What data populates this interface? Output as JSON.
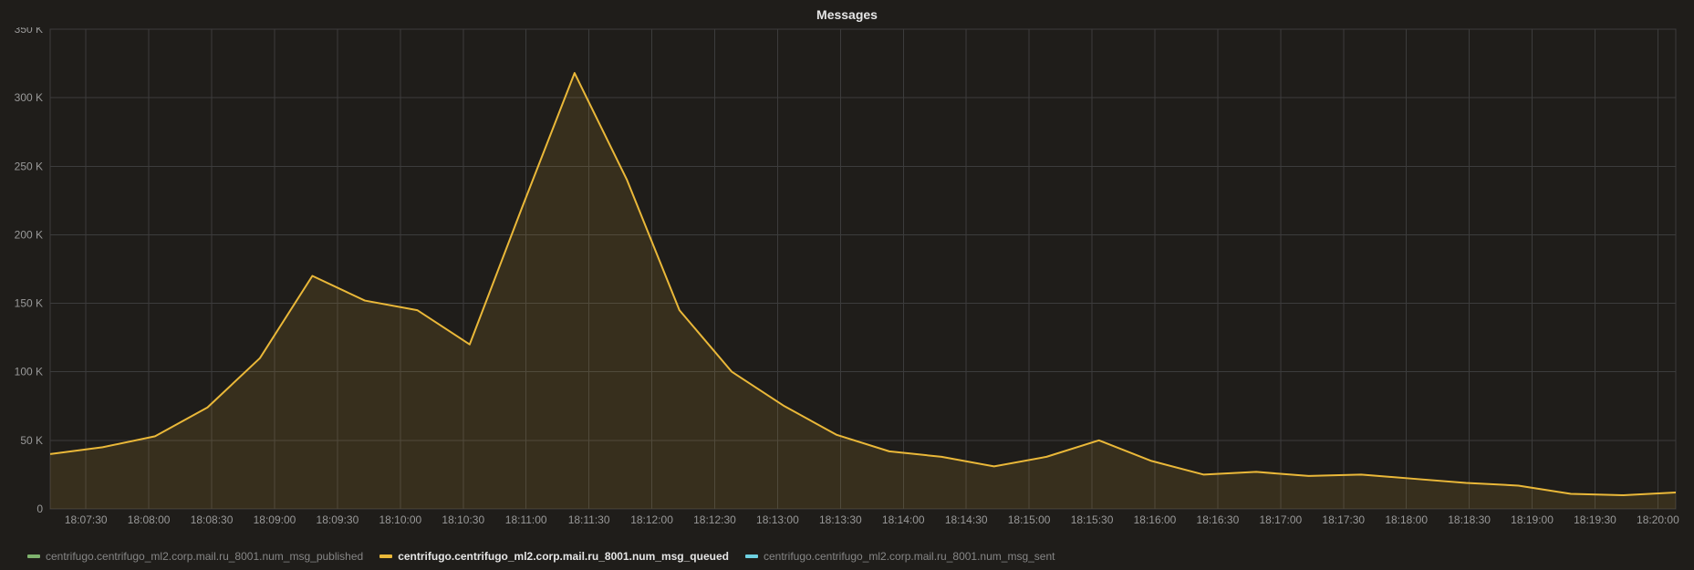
{
  "panel": {
    "title": "Messages",
    "background_color": "#1f1d1a",
    "title_color": "#e6e6e6",
    "title_fontsize": 14
  },
  "chart": {
    "type": "area",
    "grid_color": "#3c3c3c",
    "axis_label_color": "#999999",
    "axis_fontsize": 12,
    "y_axis": {
      "min": 0,
      "max": 350000,
      "tick_step": 50000,
      "tick_labels": [
        "0",
        "50 K",
        "100 K",
        "150 K",
        "200 K",
        "250 K",
        "300 K",
        "350 K"
      ]
    },
    "x_axis": {
      "tick_labels": [
        "18:07:30",
        "18:08:00",
        "18:08:30",
        "18:09:00",
        "18:09:30",
        "18:10:00",
        "18:10:30",
        "18:11:00",
        "18:11:30",
        "18:12:00",
        "18:12:30",
        "18:13:00",
        "18:13:30",
        "18:14:00",
        "18:14:30",
        "18:15:00",
        "18:15:30",
        "18:16:00",
        "18:16:30",
        "18:17:00",
        "18:17:30",
        "18:18:00",
        "18:18:30",
        "18:19:00",
        "18:19:30",
        "18:20:00"
      ]
    },
    "series": [
      {
        "name": "centrifugo.centrifugo_ml2.corp.mail.ru_8001.num_msg_published",
        "color": "#7eb26d",
        "active": false,
        "values": [
          0,
          0,
          0,
          0,
          0,
          0,
          0,
          0,
          0,
          0,
          0,
          0,
          0,
          0,
          0,
          0,
          0,
          0,
          0,
          0,
          0,
          0,
          0,
          0,
          0,
          0,
          0,
          0
        ]
      },
      {
        "name": "centrifugo.centrifugo_ml2.corp.mail.ru_8001.num_msg_queued",
        "color": "#eab839",
        "fill_color": "rgba(234,184,57,0.12)",
        "active": true,
        "values": [
          40000,
          45000,
          53000,
          74000,
          110000,
          170000,
          152000,
          145000,
          120000,
          220000,
          318000,
          240000,
          145000,
          100000,
          75000,
          54000,
          42000,
          38000,
          31000,
          38000,
          50000,
          35000,
          25000,
          27000,
          24000,
          25000,
          22000,
          19000,
          17000,
          11000,
          10000,
          12000
        ]
      },
      {
        "name": "centrifugo.centrifugo_ml2.corp.mail.ru_8001.num_msg_sent",
        "color": "#6ed0e0",
        "active": false,
        "values": [
          0,
          0,
          0,
          0,
          0,
          0,
          0,
          0,
          0,
          0,
          0,
          0,
          0,
          0,
          0,
          0,
          0,
          0,
          0,
          0,
          0,
          0,
          0,
          0,
          0,
          0,
          0,
          0
        ]
      }
    ]
  }
}
